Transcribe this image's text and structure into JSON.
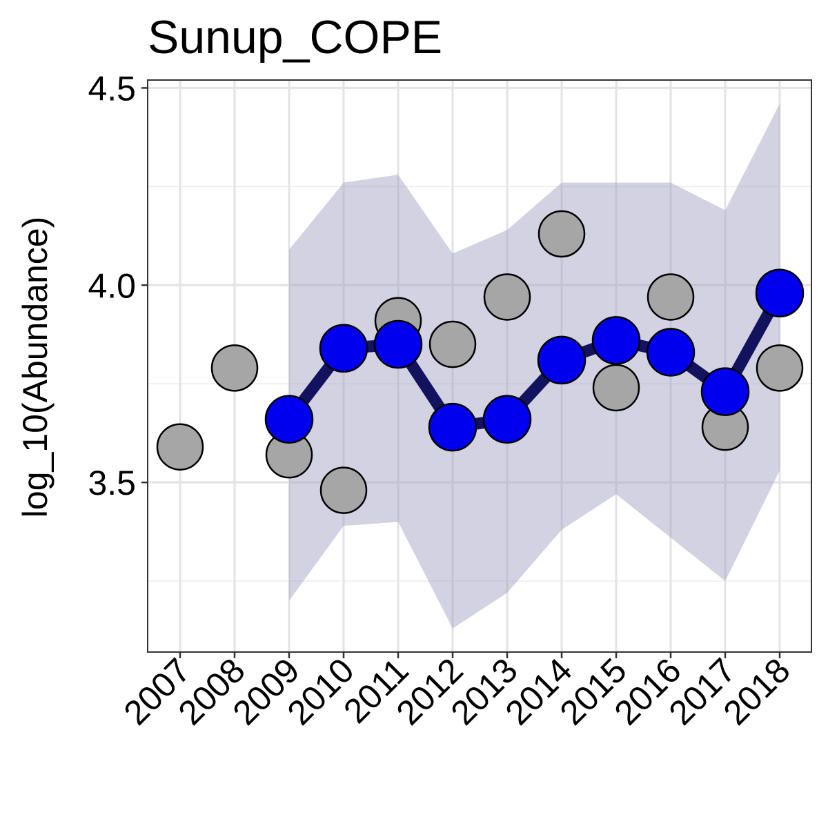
{
  "chart_data": {
    "type": "line",
    "title": "Sunup_COPE",
    "xlabel": "",
    "ylabel": "log_10(Abundance)",
    "categories": [
      "2007",
      "2008",
      "2009",
      "2010",
      "2011",
      "2012",
      "2013",
      "2014",
      "2015",
      "2016",
      "2017",
      "2018"
    ],
    "ylim": [
      3.07,
      4.52
    ],
    "yticks": [
      3.5,
      4.0,
      4.5
    ],
    "ytick_labels": [
      "3.5",
      "4.0",
      "4.5"
    ],
    "grid": true,
    "series": [
      {
        "kind": "observed-points",
        "x": [
          "2007",
          "2008",
          "2009",
          "2010",
          "2011",
          "2012",
          "2013",
          "2014",
          "2015",
          "2016",
          "2017",
          "2018"
        ],
        "values": [
          3.59,
          3.79,
          3.57,
          3.48,
          3.91,
          3.85,
          3.97,
          4.13,
          3.74,
          3.97,
          3.64,
          3.79
        ],
        "color": "#a6a6a6"
      },
      {
        "kind": "fitted-line",
        "x": [
          "2009",
          "2010",
          "2011",
          "2012",
          "2013",
          "2014",
          "2015",
          "2016",
          "2017",
          "2018"
        ],
        "values": [
          3.66,
          3.84,
          3.85,
          3.64,
          3.66,
          3.81,
          3.86,
          3.83,
          3.73,
          3.98
        ],
        "color": "#0000ee",
        "line_color": "#13125e"
      },
      {
        "kind": "interval-band",
        "x": [
          "2009",
          "2010",
          "2011",
          "2012",
          "2013",
          "2014",
          "2015",
          "2016",
          "2017",
          "2018"
        ],
        "upper": [
          4.09,
          4.26,
          4.28,
          4.08,
          4.14,
          4.26,
          4.26,
          4.26,
          4.19,
          4.46
        ],
        "lower": [
          3.2,
          3.39,
          3.4,
          3.13,
          3.22,
          3.38,
          3.47,
          3.36,
          3.25,
          3.53
        ],
        "color": "#9b9bc2"
      }
    ]
  }
}
